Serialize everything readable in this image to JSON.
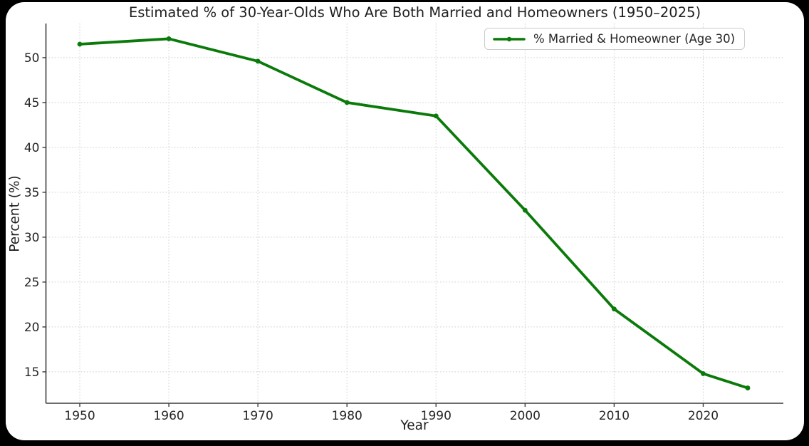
{
  "figure": {
    "surround_color": "#000000",
    "canvas_color": "#ffffff"
  },
  "chart_data": {
    "type": "line",
    "title": "Estimated % of 30-Year-Olds Who Are Both Married and Homeowners (1950–2025)",
    "xlabel": "Year",
    "ylabel": "Percent (%)",
    "x": [
      1950,
      1960,
      1970,
      1980,
      1990,
      2000,
      2010,
      2020,
      2025
    ],
    "series": [
      {
        "name": "% Married & Homeowner (Age 30)",
        "values": [
          51.5,
          52.1,
          49.6,
          45.0,
          43.5,
          33.0,
          22.0,
          14.8,
          13.2
        ],
        "color": "#0a7a0a",
        "marker": "circle"
      }
    ],
    "xticks": [
      "1950",
      "1960",
      "1970",
      "1980",
      "1990",
      "2000",
      "2010",
      "2020"
    ],
    "xtick_values": [
      1950,
      1960,
      1970,
      1980,
      1990,
      2000,
      2010,
      2020
    ],
    "yticks": [
      "15",
      "20",
      "25",
      "30",
      "35",
      "40",
      "45",
      "50"
    ],
    "ytick_values": [
      15,
      20,
      25,
      30,
      35,
      40,
      45,
      50
    ],
    "xlim": [
      1946.2,
      2029
    ],
    "ylim": [
      11.5,
      53.8
    ],
    "grid": "dotted",
    "grid_color": "#cccccc",
    "axis_color": "#3c3c3c",
    "tick_label_color": "#262626",
    "legend_position": "upper right",
    "line_width": 3.8
  }
}
